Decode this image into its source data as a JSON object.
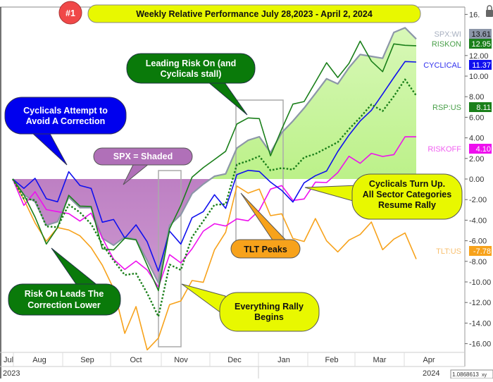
{
  "chart_data": {
    "type": "line",
    "badge": "#1",
    "title": "Weekly Relative Performance July 28,2023 - April 2, 2024",
    "ylim": [
      -16,
      16
    ],
    "y_ticks": [
      "16.",
      "12.00",
      "10.00",
      "8.00",
      "6.00",
      "4.00",
      "2.00",
      "0.00",
      "-2.00",
      "-4.00",
      "-6.00",
      "-8.00",
      "-10.00",
      "-12.00",
      "-14.00",
      "-16.00"
    ],
    "y_tick_values": [
      16,
      12,
      10,
      8,
      6,
      4,
      2,
      0,
      -2,
      -4,
      -6,
      -8,
      -10,
      -12,
      -14,
      -16
    ],
    "x_months": [
      "Jul",
      "Aug",
      "Sep",
      "Oct",
      "Nov",
      "Dec",
      "Jan",
      "Feb",
      "Mar",
      "Apr"
    ],
    "x_years": [
      "2023",
      "2024"
    ],
    "corner_readout": "1.0868613",
    "corner_label": "xy",
    "grid": false,
    "x": [
      "2023-07-28",
      "2023-08-04",
      "2023-08-11",
      "2023-08-18",
      "2023-08-25",
      "2023-09-01",
      "2023-09-08",
      "2023-09-15",
      "2023-09-22",
      "2023-09-29",
      "2023-10-06",
      "2023-10-13",
      "2023-10-20",
      "2023-10-27",
      "2023-11-03",
      "2023-11-10",
      "2023-11-17",
      "2023-11-24",
      "2023-12-01",
      "2023-12-08",
      "2023-12-15",
      "2023-12-22",
      "2023-12-29",
      "2024-01-05",
      "2024-01-12",
      "2024-01-19",
      "2024-01-26",
      "2024-02-02",
      "2024-02-09",
      "2024-02-16",
      "2024-02-23",
      "2024-03-01",
      "2024-03-08",
      "2024-03-15",
      "2024-03-22",
      "2024-03-28",
      "2024-04-02"
    ],
    "series": [
      {
        "name": "SPX:WI",
        "last": "13.61",
        "color": "#8c96a8",
        "style": "shaded",
        "values": [
          0,
          -1.53,
          -2.21,
          -4.5,
          -4.16,
          -1.76,
          -2.79,
          -2.79,
          -5.75,
          -6.44,
          -5.64,
          -5.87,
          -7.92,
          -10.09,
          -4.5,
          -3.47,
          -1.42,
          -0.5,
          0.27,
          0.5,
          3.01,
          3.77,
          4.11,
          2.56,
          4.5,
          5.64,
          6.89,
          8.31,
          9.75,
          9.25,
          10.82,
          12.1,
          11.92,
          11.73,
          14.25,
          14.7,
          13.61
        ]
      },
      {
        "name": "RISKON",
        "last": "12.95",
        "color": "#1a7f1a",
        "style": "solid",
        "values": [
          0,
          -1.53,
          -3.7,
          -6.32,
          -4.72,
          -1.58,
          -2.63,
          -2.67,
          -6.78,
          -6.89,
          -5.75,
          -5.91,
          -8.38,
          -10.84,
          -4.84,
          -2.56,
          0.18,
          1.1,
          1.89,
          2.69,
          5.34,
          5.94,
          5.87,
          2.26,
          4.84,
          7.28,
          7.53,
          9.41,
          11.3,
          9.86,
          11.23,
          13.4,
          11.46,
          10.43,
          13.13,
          12.99,
          12.95
        ]
      },
      {
        "name": "CYCLICAL",
        "last": "11.37",
        "color": "#1010ee",
        "style": "solid",
        "values": [
          0,
          -0.91,
          0.07,
          -1.92,
          -2.21,
          0.71,
          -0.62,
          -0.91,
          -4.2,
          -3.93,
          -5.75,
          -4.45,
          -6.1,
          -8.95,
          -5.07,
          -6.32,
          -3.76,
          -3.17,
          -1.53,
          -2.85,
          0.43,
          0.84,
          0.73,
          -0.3,
          -1.1,
          -2.24,
          -0.37,
          0.32,
          0.78,
          2.67,
          4.27,
          5.64,
          6.67,
          8.26,
          9.86,
          11.42,
          11.37
        ]
      },
      {
        "name": "RSP:US",
        "last": "8.11",
        "color": "#1a7f1a",
        "style": "dotted",
        "values": [
          0,
          -1.92,
          -2.05,
          -4.61,
          -4.68,
          -2.49,
          -3.24,
          -4.38,
          -6.32,
          -7.92,
          -9.33,
          -9.17,
          -11.1,
          -13.36,
          -8.31,
          -8.84,
          -5.64,
          -4.09,
          -2.51,
          -2.44,
          1.42,
          1.76,
          2.21,
          0.84,
          1.07,
          0.91,
          2.1,
          2.44,
          3.01,
          3.58,
          4.84,
          5.98,
          7.24,
          6.6,
          8.04,
          9.68,
          8.11
        ]
      },
      {
        "name": "RISKOFF",
        "last": "4.10",
        "color": "#ee10ee",
        "style": "solid",
        "values": [
          0,
          -2.56,
          -1.23,
          -2.97,
          -3.17,
          -3.36,
          -4.09,
          -3.31,
          -5.75,
          -7.8,
          -8.79,
          -7.97,
          -8.84,
          -10.5,
          -7.35,
          -8.15,
          -6.78,
          -5.07,
          -4.34,
          -4.57,
          -3.88,
          -4.06,
          -3.04,
          -0.98,
          -0.64,
          -2.08,
          -1.94,
          -0.3,
          -0.34,
          0.62,
          2.21,
          1.53,
          2.49,
          2.19,
          2.37,
          4.11,
          4.1
        ]
      },
      {
        "name": "TLT:US",
        "last": "-7.78",
        "color": "#f7a21b",
        "style": "solid",
        "values": [
          0,
          -1.99,
          -4.27,
          -6.05,
          -4.72,
          -4.95,
          -5.52,
          -6.67,
          -8.38,
          -10.66,
          -15.0,
          -12.4,
          -16.6,
          -15.46,
          -12.21,
          -11.85,
          -9.86,
          -10.04,
          -6.89,
          -5.18,
          -0.68,
          -1.37,
          -0.98,
          -3.56,
          -3.38,
          -5.78,
          -6.07,
          -3.84,
          -6.01,
          -7.08,
          -5.94,
          -5.39,
          -4.18,
          -6.87,
          -5.84,
          -5.25,
          -7.78
        ]
      }
    ],
    "annotations": {
      "cyclicals_attempt": [
        "Cyclicals Attempt to",
        "Avoid A Correction"
      ],
      "spx_shaded": "SPX = Shaded",
      "leading_risk_on": [
        "Leading Risk On (and",
        "Cyclicals stall)"
      ],
      "cyclicals_turn_up": [
        "Cyclicals Turn Up.",
        "All Sector Categories",
        "Resume Rally"
      ],
      "tlt_peaks": "TLT Peaks",
      "risk_on_leads": [
        "Risk On Leads The",
        "Correction Lower"
      ],
      "everything_rally": [
        "Everything Rally",
        "Begins"
      ]
    },
    "colors": {
      "shade_above": "#b4f07a",
      "shade_below": "#b070b8",
      "title_fill": "#e8f800",
      "badge_fill": "#f04848"
    }
  }
}
